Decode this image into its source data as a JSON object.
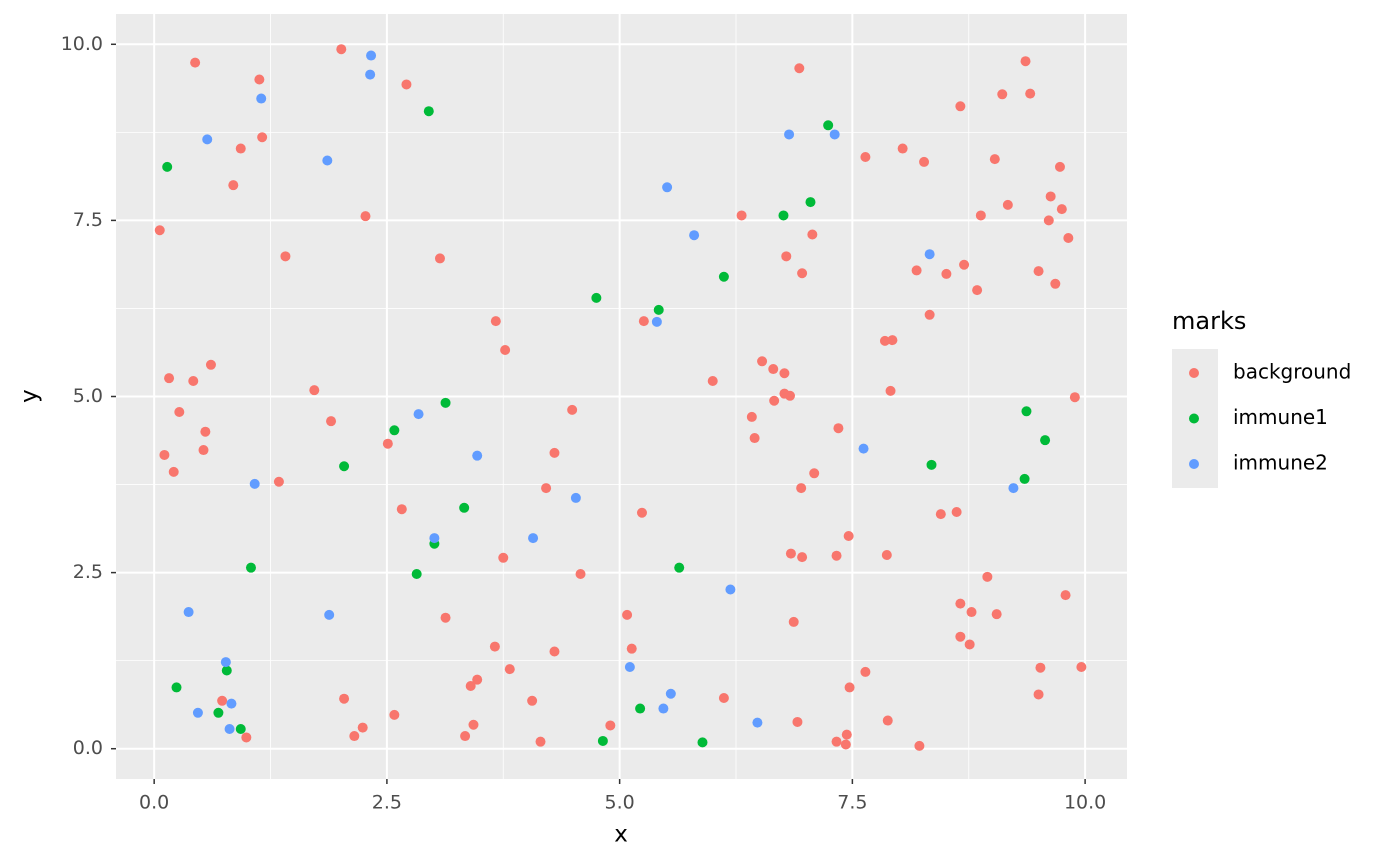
{
  "chart_data": {
    "type": "scatter",
    "x_label": "x",
    "y_label": "y",
    "legend_title": "marks",
    "legend": "right",
    "grid": true,
    "xlim": [
      -0.41,
      10.45
    ],
    "ylim": [
      -0.43,
      10.43
    ],
    "xticks": [
      {
        "value": 0,
        "label": "0.0"
      },
      2.5,
      {
        "value": 5,
        "label": "5.0"
      },
      7.5,
      {
        "value": 10,
        "label": "10.0"
      }
    ],
    "yticks": [
      {
        "value": 0,
        "label": "0.0"
      },
      2.5,
      {
        "value": 5,
        "label": "5.0"
      },
      7.5,
      {
        "value": 10,
        "label": "10.0"
      }
    ],
    "series": [
      {
        "name": "background",
        "color": "#F8766D",
        "x": [
          0.06,
          0.44,
          1.13,
          0.93,
          1.16,
          0.85,
          2.01,
          2.71,
          2.27,
          1.41,
          3.07,
          0.16,
          0.61,
          0.42,
          0.27,
          0.55,
          0.53,
          0.11,
          0.21,
          1.72,
          1.9,
          1.34,
          2.51,
          2.66,
          3.67,
          3.77,
          4.49,
          4.3,
          4.21,
          5.24,
          3.75,
          4.58,
          3.13,
          3.66,
          3.82,
          4.3,
          5.08,
          5.13,
          3.47,
          3.4,
          4.06,
          3.43,
          3.34,
          4.15,
          4.9,
          0.73,
          0.99,
          2.04,
          2.24,
          2.15,
          2.58,
          5.26,
          6.0,
          6.31,
          6.93,
          6.79,
          7.07,
          6.96,
          6.53,
          6.65,
          6.77,
          6.77,
          6.83,
          6.66,
          6.42,
          6.45,
          7.35,
          7.09,
          6.95,
          6.84,
          6.96,
          7.33,
          7.46,
          6.87,
          6.12,
          6.91,
          7.47,
          7.64,
          7.33,
          7.44,
          7.43,
          7.88,
          8.22,
          7.64,
          8.04,
          8.27,
          8.66,
          9.36,
          9.11,
          9.41,
          9.03,
          9.73,
          9.63,
          8.88,
          9.17,
          9.61,
          9.75,
          9.82,
          8.19,
          8.51,
          8.7,
          8.84,
          8.33,
          9.5,
          9.68,
          7.85,
          7.93,
          7.91,
          9.89,
          8.45,
          8.62,
          7.87,
          8.95,
          8.66,
          8.78,
          9.05,
          8.66,
          8.76,
          9.79,
          9.52,
          9.5,
          9.96
        ],
        "values": [
          7.36,
          9.74,
          9.5,
          8.52,
          8.68,
          8.0,
          9.93,
          9.43,
          7.56,
          6.99,
          6.96,
          5.26,
          5.45,
          5.22,
          4.78,
          4.5,
          4.24,
          4.17,
          3.93,
          5.09,
          4.65,
          3.79,
          4.33,
          3.4,
          6.07,
          5.66,
          4.81,
          4.2,
          3.7,
          3.35,
          2.71,
          2.48,
          1.86,
          1.45,
          1.13,
          1.38,
          1.9,
          1.42,
          0.98,
          0.89,
          0.68,
          0.34,
          0.18,
          0.1,
          0.33,
          0.68,
          0.16,
          0.71,
          0.3,
          0.18,
          0.48,
          6.07,
          5.22,
          7.57,
          9.66,
          6.99,
          7.3,
          6.75,
          5.5,
          5.39,
          5.33,
          5.04,
          5.01,
          4.94,
          4.71,
          4.41,
          4.55,
          3.91,
          3.7,
          2.77,
          2.72,
          2.74,
          3.02,
          1.8,
          0.72,
          0.38,
          0.87,
          1.09,
          0.1,
          0.2,
          0.06,
          0.4,
          0.04,
          8.4,
          8.52,
          8.33,
          9.12,
          9.76,
          9.29,
          9.3,
          8.37,
          8.26,
          7.84,
          7.57,
          7.72,
          7.5,
          7.66,
          7.25,
          6.79,
          6.74,
          6.87,
          6.51,
          6.16,
          6.78,
          6.6,
          5.79,
          5.8,
          5.08,
          4.99,
          3.33,
          3.36,
          2.75,
          2.44,
          2.06,
          1.94,
          1.91,
          1.59,
          1.48,
          2.18,
          1.15,
          0.77,
          1.16
        ]
      },
      {
        "name": "immune1",
        "color": "#00BA38",
        "x": [
          0.14,
          2.95,
          0.24,
          0.69,
          0.78,
          0.93,
          1.04,
          2.04,
          2.58,
          3.13,
          3.33,
          3.01,
          2.82,
          4.75,
          5.42,
          6.12,
          6.76,
          7.05,
          7.24,
          5.64,
          5.22,
          4.82,
          5.89,
          8.35,
          9.37,
          9.57,
          9.35
        ],
        "values": [
          8.26,
          9.05,
          0.87,
          0.51,
          1.11,
          0.28,
          2.57,
          4.01,
          4.52,
          4.91,
          3.42,
          2.91,
          2.48,
          6.4,
          6.23,
          6.7,
          7.57,
          7.76,
          8.85,
          2.57,
          0.57,
          0.11,
          0.09,
          4.03,
          4.79,
          4.38,
          3.83
        ]
      },
      {
        "name": "immune2",
        "color": "#619CFF",
        "x": [
          0.57,
          1.15,
          2.33,
          2.32,
          1.86,
          1.08,
          2.84,
          3.47,
          3.01,
          4.07,
          4.53,
          0.37,
          1.88,
          0.77,
          0.47,
          0.83,
          0.81,
          5.51,
          5.8,
          5.4,
          6.82,
          7.31,
          8.33,
          7.62,
          9.23,
          6.19,
          5.11,
          5.55,
          5.47,
          6.48
        ],
        "values": [
          8.65,
          9.23,
          9.84,
          9.57,
          8.35,
          3.76,
          4.75,
          4.16,
          2.99,
          2.99,
          3.56,
          1.94,
          1.9,
          1.23,
          0.51,
          0.64,
          0.28,
          7.97,
          7.29,
          6.06,
          8.72,
          8.72,
          7.02,
          4.26,
          3.7,
          2.26,
          1.16,
          0.78,
          0.57,
          0.37
        ]
      }
    ]
  }
}
